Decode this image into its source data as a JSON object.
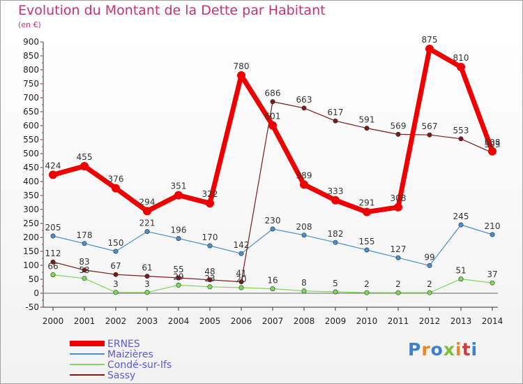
{
  "title": "Evolution du Montant de la Dette par Habitant",
  "subtitle": "(en €)",
  "logo": {
    "text": "Proxiti",
    "colors": [
      "#3d7fd0",
      "#e8872b",
      "#3d7fd0",
      "#7bbf3a",
      "#e8872b",
      "#d23b3b",
      "#3d7fd0"
    ]
  },
  "chart_data": {
    "type": "line",
    "x": [
      "2000",
      "2001",
      "2002",
      "2003",
      "2004",
      "2005",
      "2006",
      "2007",
      "2008",
      "2009",
      "2010",
      "2011",
      "2012",
      "2013",
      "2014"
    ],
    "ylim": [
      -50,
      900
    ],
    "yticks": [
      "-50",
      "0",
      "50",
      "100",
      "150",
      "200",
      "250",
      "300",
      "350",
      "400",
      "450",
      "500",
      "550",
      "600",
      "650",
      "700",
      "750",
      "800",
      "850",
      "900"
    ],
    "grid": false,
    "legend_position": "bottom-left",
    "series": [
      {
        "name": "ERNES",
        "color": "#ee0000",
        "values": [
          424,
          455,
          376,
          294,
          351,
          322,
          780,
          601,
          389,
          333,
          291,
          308,
          875,
          810,
          508
        ]
      },
      {
        "name": "Maizières",
        "color": "#4a8fcc",
        "values": [
          205,
          178,
          150,
          221,
          196,
          170,
          142,
          230,
          208,
          182,
          155,
          127,
          99,
          245,
          210
        ]
      },
      {
        "name": "Condé-sur-Ifs",
        "color": "#7ed957",
        "values": [
          66,
          53,
          3,
          3,
          29,
          23,
          20,
          16,
          8,
          5,
          2,
          2,
          2,
          51,
          37
        ]
      },
      {
        "name": "Sassy",
        "color": "#7a1a1a",
        "values": [
          112,
          83,
          67,
          61,
          55,
          48,
          41,
          686,
          663,
          617,
          591,
          569,
          567,
          553,
          503
        ]
      }
    ]
  }
}
